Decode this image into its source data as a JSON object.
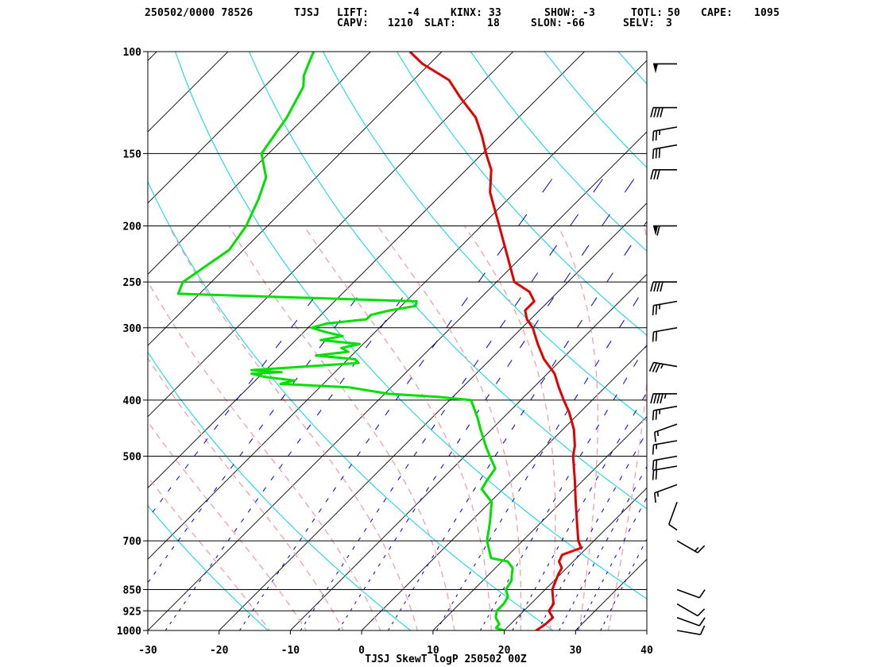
{
  "header": {
    "line1": [
      {
        "text": "250502/0000 78526"
      },
      {
        "text": "TJSJ"
      },
      {
        "text": "LIFT:"
      },
      {
        "text": "-4"
      },
      {
        "text": "KINX:"
      },
      {
        "text": "33"
      },
      {
        "text": "SHOW:"
      },
      {
        "text": "-3"
      },
      {
        "text": "TOTL:"
      },
      {
        "text": "50"
      },
      {
        "text": "CAPE:"
      },
      {
        "text": "1095"
      }
    ],
    "line2": [
      {
        "text": "CAPV:"
      },
      {
        "text": "1210"
      },
      {
        "text": "SLAT:"
      },
      {
        "text": "18"
      },
      {
        "text": "SLON:"
      },
      {
        "text": "-66"
      },
      {
        "text": "SELV:"
      },
      {
        "text": "3"
      }
    ]
  },
  "chart_data": {
    "type": "line",
    "title": "TJSJ SkewT logP 250502 00Z",
    "xlabel": "",
    "ylabel": "",
    "x_ticks": [
      "-30",
      "-20",
      "-10",
      "0",
      "10",
      "20",
      "30",
      "40"
    ],
    "y_ticks": [
      "100",
      "150",
      "200",
      "250",
      "300",
      "400",
      "500",
      "700",
      "850",
      "925",
      "1000"
    ],
    "xlim": [
      -30,
      40
    ],
    "ylim": [
      1000,
      100
    ],
    "y_scale": "log",
    "colors": {
      "temperature": "#e00000",
      "dewpoint": "#00e000",
      "isotherm": "#000000",
      "dry_adiabat": "#00d8e0",
      "moist_adiabat": "#f0a0a8",
      "mixing_ratio": "#0000c8"
    },
    "series": [
      {
        "name": "",
        "x_unit_label": "",
        "points": [
          [
            1010,
            24.8
          ],
          [
            1000,
            24.5
          ],
          [
            975,
            24.9
          ],
          [
            950,
            25.0
          ],
          [
            925,
            23.5
          ],
          [
            900,
            23.2
          ],
          [
            850,
            21.0
          ],
          [
            800,
            19.7
          ],
          [
            780,
            19.3
          ],
          [
            760,
            18.0
          ],
          [
            740,
            17.5
          ],
          [
            720,
            19.2
          ],
          [
            700,
            17.8
          ],
          [
            650,
            15.0
          ],
          [
            600,
            12.0
          ],
          [
            550,
            8.8
          ],
          [
            500,
            5.2
          ],
          [
            480,
            4.0
          ],
          [
            450,
            1.6
          ],
          [
            420,
            -1.5
          ],
          [
            400,
            -4.0
          ],
          [
            380,
            -6.5
          ],
          [
            360,
            -9.0
          ],
          [
            340,
            -12.5
          ],
          [
            320,
            -15.5
          ],
          [
            300,
            -18.5
          ],
          [
            290,
            -20.5
          ],
          [
            280,
            -22.0
          ],
          [
            270,
            -22.0
          ],
          [
            260,
            -24.0
          ],
          [
            250,
            -27.5
          ],
          [
            200,
            -37.5
          ],
          [
            175,
            -43.5
          ],
          [
            160,
            -46.5
          ],
          [
            150,
            -49.5
          ],
          [
            140,
            -52.5
          ],
          [
            130,
            -56.0
          ],
          [
            120,
            -61.0
          ],
          [
            112,
            -65.0
          ],
          [
            105,
            -71.0
          ],
          [
            100,
            -74.5
          ]
        ]
      },
      {
        "name": "",
        "points": [
          [
            1010,
            20.7
          ],
          [
            1000,
            20.0
          ],
          [
            990,
            18.5
          ],
          [
            975,
            18.4
          ],
          [
            950,
            17.0
          ],
          [
            925,
            16.2
          ],
          [
            900,
            16.2
          ],
          [
            875,
            15.8
          ],
          [
            850,
            14.5
          ],
          [
            820,
            14.0
          ],
          [
            800,
            13.2
          ],
          [
            780,
            12.4
          ],
          [
            760,
            10.8
          ],
          [
            750,
            8.0
          ],
          [
            700,
            5.0
          ],
          [
            650,
            2.8
          ],
          [
            600,
            0.2
          ],
          [
            570,
            -3.0
          ],
          [
            550,
            -3.5
          ],
          [
            525,
            -4.0
          ],
          [
            500,
            -6.5
          ],
          [
            480,
            -8.5
          ],
          [
            450,
            -11.5
          ],
          [
            430,
            -13.5
          ],
          [
            410,
            -15.8
          ],
          [
            400,
            -17.0
          ],
          [
            395,
            -22.0
          ],
          [
            390,
            -29.5
          ],
          [
            380,
            -36.0
          ],
          [
            375,
            -46.0
          ],
          [
            370,
            -44.5
          ],
          [
            365,
            -49.0
          ],
          [
            360,
            -51.5
          ],
          [
            358,
            -47.5
          ],
          [
            355,
            -52.0
          ],
          [
            350,
            -45.0
          ],
          [
            345,
            -38.0
          ],
          [
            340,
            -39.0
          ],
          [
            335,
            -45.0
          ],
          [
            330,
            -41.0
          ],
          [
            325,
            -42.5
          ],
          [
            320,
            -40.5
          ],
          [
            315,
            -46.5
          ],
          [
            310,
            -44.0
          ],
          [
            305,
            -47.0
          ],
          [
            300,
            -49.5
          ],
          [
            295,
            -48.0
          ],
          [
            290,
            -43.0
          ],
          [
            285,
            -43.0
          ],
          [
            280,
            -41.0
          ],
          [
            275,
            -38.0
          ],
          [
            270,
            -38.5
          ],
          [
            262,
            -73.0
          ],
          [
            250,
            -74.0
          ],
          [
            220,
            -72.0
          ],
          [
            200,
            -73.0
          ],
          [
            180,
            -75.0
          ],
          [
            165,
            -77.0
          ],
          [
            150,
            -81.0
          ],
          [
            130,
            -82.5
          ],
          [
            115,
            -84.5
          ],
          [
            110,
            -86.0
          ],
          [
            105,
            -87.0
          ],
          [
            100,
            -88.0
          ]
        ]
      }
    ],
    "wind_barbs": [
      {
        "p": 1000,
        "dir": 100,
        "spd": 10
      },
      {
        "p": 950,
        "dir": 110,
        "spd": 10
      },
      {
        "p": 900,
        "dir": 120,
        "spd": 10
      },
      {
        "p": 850,
        "dir": 110,
        "spd": 10
      },
      {
        "p": 700,
        "dir": 120,
        "spd": 15
      },
      {
        "p": 600,
        "dir": 200,
        "spd": 10
      },
      {
        "p": 560,
        "dir": 250,
        "spd": 15
      },
      {
        "p": 520,
        "dir": 260,
        "spd": 20
      },
      {
        "p": 500,
        "dir": 260,
        "spd": 20
      },
      {
        "p": 470,
        "dir": 260,
        "spd": 15
      },
      {
        "p": 440,
        "dir": 250,
        "spd": 15
      },
      {
        "p": 410,
        "dir": 260,
        "spd": 25
      },
      {
        "p": 390,
        "dir": 270,
        "spd": 45
      },
      {
        "p": 350,
        "dir": 280,
        "spd": 35
      },
      {
        "p": 300,
        "dir": 260,
        "spd": 20
      },
      {
        "p": 270,
        "dir": 260,
        "spd": 25
      },
      {
        "p": 250,
        "dir": 270,
        "spd": 40
      },
      {
        "p": 200,
        "dir": 270,
        "spd": 60
      },
      {
        "p": 160,
        "dir": 270,
        "spd": 30
      },
      {
        "p": 145,
        "dir": 260,
        "spd": 30
      },
      {
        "p": 135,
        "dir": 260,
        "spd": 25
      },
      {
        "p": 125,
        "dir": 270,
        "spd": 40
      },
      {
        "p": 105,
        "dir": 270,
        "spd": 50
      }
    ],
    "grid": true
  }
}
